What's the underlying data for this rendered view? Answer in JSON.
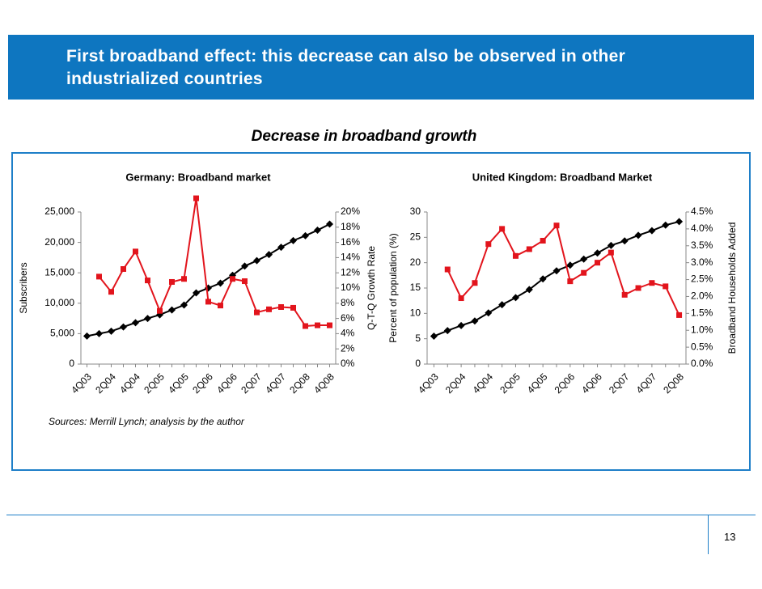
{
  "header": {
    "title": "First broadband effect: this decrease can also be observed in other industrialized countries"
  },
  "subtitle": "Decrease in broadband growth",
  "sources": "Sources: Merrill Lynch; analysis by the author",
  "page_number": "13",
  "chart_data": [
    {
      "type": "line",
      "title": "Germany: Broadband market",
      "y_label": "Subscribers",
      "y2_label": "Q-T-Q Growth Rate",
      "categories": [
        "4Q03",
        null,
        "2Q04",
        null,
        "4Q04",
        null,
        "2Q05",
        null,
        "4Q05",
        null,
        "2Q06",
        null,
        "4Q06",
        null,
        "2Q07",
        null,
        "4Q07",
        null,
        "2Q08",
        null,
        "4Q08"
      ],
      "ylim": [
        0,
        25000
      ],
      "yticks": [
        0,
        {
          "value": 5000,
          "label": "5,000"
        },
        {
          "value": 10000,
          "label": "10,000"
        },
        {
          "value": 15000,
          "label": "15,000"
        },
        {
          "value": 20000,
          "label": "20,000"
        },
        {
          "value": 25000,
          "label": "25,000"
        }
      ],
      "y2lim": [
        0,
        20
      ],
      "y2ticks": [
        {
          "value": 0,
          "label": "0%"
        },
        {
          "value": 2,
          "label": "2%"
        },
        {
          "value": 4,
          "label": "4%"
        },
        {
          "value": 6,
          "label": "6%"
        },
        {
          "value": 8,
          "label": "8%"
        },
        {
          "value": 10,
          "label": "10%"
        },
        {
          "value": 12,
          "label": "12%"
        },
        {
          "value": 14,
          "label": "14%"
        },
        {
          "value": 16,
          "label": "16%"
        },
        {
          "value": 18,
          "label": "18%"
        },
        {
          "value": 20,
          "label": "20%"
        }
      ],
      "series": [
        {
          "color": "#000000",
          "marker": "diamond",
          "axis": "y",
          "values": [
            4600,
            5000,
            5400,
            6100,
            6800,
            7500,
            8100,
            8900,
            9700,
            11700,
            12500,
            13300,
            14600,
            16100,
            17000,
            18000,
            19200,
            20300,
            21100,
            22000,
            23000
          ]
        },
        {
          "color": "#e2141c",
          "marker": "square",
          "axis": "y2",
          "values": [
            null,
            11.5,
            9.5,
            12.5,
            14.8,
            11,
            7,
            10.8,
            11.2,
            21.8,
            8.2,
            7.7,
            11.2,
            10.9,
            6.8,
            7.2,
            7.5,
            7.4,
            5,
            5.1,
            5.1
          ]
        }
      ]
    },
    {
      "type": "line",
      "title": "United Kingdom: Broadband Market",
      "y_label": "Percent of population (%)",
      "y2_label": "Broadband Households Added",
      "categories": [
        "4Q03",
        null,
        "2Q04",
        null,
        "4Q04",
        null,
        "2Q05",
        null,
        "4Q05",
        null,
        "2Q06",
        null,
        "4Q06",
        null,
        "2Q07",
        null,
        "4Q07",
        null,
        "2Q08"
      ],
      "ylim": [
        0,
        30
      ],
      "yticks": [
        0,
        5,
        10,
        15,
        20,
        25,
        30
      ],
      "y2lim": [
        0,
        4.5
      ],
      "y2ticks": [
        {
          "value": 0,
          "label": "0.0%"
        },
        {
          "value": 0.5,
          "label": "0.5%"
        },
        {
          "value": 1,
          "label": "1.0%"
        },
        {
          "value": 1.5,
          "label": "1.5%"
        },
        {
          "value": 2,
          "label": "2.0%"
        },
        {
          "value": 2.5,
          "label": "2.5%"
        },
        {
          "value": 3,
          "label": "3.0%"
        },
        {
          "value": 3.5,
          "label": "3.5%"
        },
        {
          "value": 4,
          "label": "4.0%"
        },
        {
          "value": 4.5,
          "label": "4.5%"
        }
      ],
      "series": [
        {
          "color": "#000000",
          "marker": "diamond",
          "axis": "y",
          "values": [
            5.5,
            6.6,
            7.6,
            8.5,
            10.1,
            11.7,
            13.1,
            14.7,
            16.8,
            18.4,
            19.5,
            20.7,
            21.9,
            23.4,
            24.3,
            25.4,
            26.3,
            27.4,
            28.1
          ]
        },
        {
          "color": "#e2141c",
          "marker": "square",
          "axis": "y2",
          "values": [
            null,
            2.8,
            1.95,
            2.4,
            3.55,
            4.0,
            3.2,
            3.4,
            3.65,
            4.1,
            2.45,
            2.7,
            3.0,
            3.3,
            2.05,
            2.25,
            2.4,
            2.3,
            1.45
          ]
        }
      ]
    }
  ]
}
